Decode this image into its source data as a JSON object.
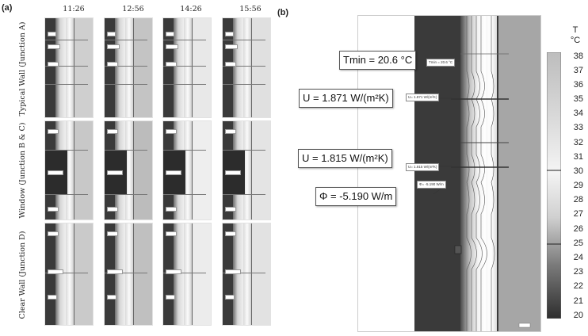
{
  "panel_a": {
    "label": "(a)",
    "times": [
      "11:26",
      "12:56",
      "14:26",
      "15:56"
    ],
    "rows": [
      "Typical Wall (Junction A)",
      "Window (Junction B & C)",
      "Clear Wall (Junction D)"
    ]
  },
  "panel_b": {
    "label": "(b)",
    "annotations": {
      "tmin": "Tmin = 20.6 °C",
      "u1": "U = 1.871 W/(m²K)",
      "u2": "U = 1.815 W/(m²K)",
      "phi": "Φ = -5.190 W/m"
    },
    "small_labels": {
      "tmin_small": "Tmin = 20.6 °C",
      "u1_small": "U= 1.871 W/(m²K)",
      "u2_small": "U= 1.815 W/(m²K)",
      "phi_small": "Φ= -5.190 W/m"
    },
    "legend": {
      "title_symbol": "T",
      "title_unit": "°C",
      "ticks": [
        "38",
        "37",
        "36",
        "35",
        "34",
        "33",
        "32",
        "31",
        "30",
        "29",
        "28",
        "27",
        "26",
        "25",
        "24",
        "23",
        "22",
        "21",
        "20"
      ],
      "range": [
        20,
        38
      ]
    }
  }
}
